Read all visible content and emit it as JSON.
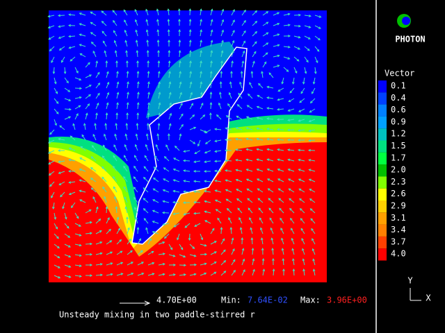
{
  "logo": "PHOTON",
  "legend": {
    "title": "Vector",
    "labels": [
      "0.1",
      "0.4",
      "0.6",
      "0.9",
      "1.2",
      "1.5",
      "1.7",
      "2.0",
      "2.3",
      "2.6",
      "2.9",
      "3.1",
      "3.4",
      "3.7",
      "4.0"
    ]
  },
  "footer": {
    "scale": "4.70E+00",
    "min_label": "Min:",
    "min_value": "7.64E-02",
    "max_label": "Max:",
    "max_value": "3.96E+00",
    "caption": "Unsteady mixing in two paddle-stirred r"
  },
  "axes": {
    "y": "Y",
    "x": "X"
  }
}
